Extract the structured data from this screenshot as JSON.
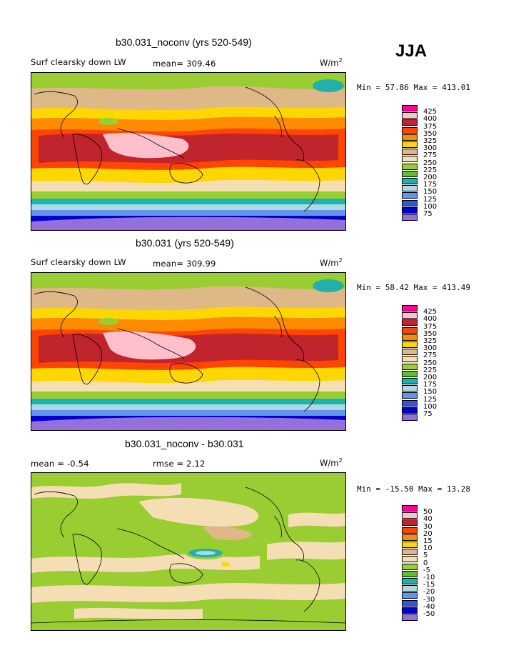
{
  "season": "JJA",
  "units_base": "W/m",
  "units_exp": "2",
  "panels": [
    {
      "title": "b30.031_noconv (yrs 520-549)",
      "left_label": "Surf clearsky down LW",
      "mid_label": "mean= 309.46",
      "minmax": "Min =  57.86 Max = 413.01",
      "colorbar": {
        "labels": [
          "425",
          "400",
          "375",
          "350",
          "325",
          "300",
          "275",
          "250",
          "225",
          "200",
          "175",
          "150",
          "125",
          "100",
          "75"
        ],
        "colors": [
          "#ff0099",
          "#ffc0cb",
          "#c0242c",
          "#ff4500",
          "#ff8c00",
          "#ffd700",
          "#deb887",
          "#f5deb3",
          "#9acd32",
          "#66bb33",
          "#20b2aa",
          "#add8e6",
          "#6495ed",
          "#3355dd",
          "#0000cd",
          "#9370db"
        ]
      }
    },
    {
      "title": "b30.031 (yrs 520-549)",
      "left_label": "Surf clearsky down LW",
      "mid_label": "mean= 309.99",
      "minmax": "Min =  58.42 Max = 413.49",
      "colorbar": {
        "labels": [
          "425",
          "400",
          "375",
          "350",
          "325",
          "300",
          "275",
          "250",
          "225",
          "200",
          "175",
          "150",
          "125",
          "100",
          "75"
        ],
        "colors": [
          "#ff0099",
          "#ffc0cb",
          "#c0242c",
          "#ff4500",
          "#ff8c00",
          "#ffd700",
          "#deb887",
          "#f5deb3",
          "#9acd32",
          "#66bb33",
          "#20b2aa",
          "#add8e6",
          "#6495ed",
          "#3355dd",
          "#0000cd",
          "#9370db"
        ]
      }
    },
    {
      "title": "b30.031_noconv - b30.031",
      "left_label": "mean =   -0.54",
      "mid_label": "rmse =    2.12",
      "minmax": "Min = -15.50 Max =  13.28",
      "colorbar": {
        "labels": [
          "50",
          "40",
          "30",
          "20",
          "15",
          "10",
          "5",
          "0",
          "-5",
          "-10",
          "-15",
          "-20",
          "-30",
          "-40",
          "-50"
        ],
        "colors": [
          "#ff0099",
          "#ffc0cb",
          "#c0242c",
          "#ff4500",
          "#ff8c00",
          "#ffd700",
          "#deb887",
          "#f5deb3",
          "#9acd32",
          "#66bb33",
          "#20b2aa",
          "#add8e6",
          "#6495ed",
          "#3355dd",
          "#0000cd",
          "#9370db"
        ]
      }
    }
  ],
  "chart_data": [
    {
      "type": "heatmap",
      "title": "b30.031_noconv (yrs 520-549)",
      "variable": "Surf clearsky down LW",
      "units": "W/m2",
      "mean": 309.46,
      "min": 57.86,
      "max": 413.01,
      "contour_levels": [
        75,
        100,
        125,
        150,
        175,
        200,
        225,
        250,
        275,
        300,
        325,
        350,
        375,
        400,
        425
      ],
      "field_bands": [
        {
          "lat_range": [
            60,
            90
          ],
          "level": 250
        },
        {
          "lat_range": [
            40,
            60
          ],
          "level": 275
        },
        {
          "lat_range": [
            25,
            40
          ],
          "level": 325
        },
        {
          "lat_range": [
            10,
            25
          ],
          "level": 375
        },
        {
          "lat_range": [
            -10,
            10
          ],
          "level": 400
        },
        {
          "lat_range": [
            -25,
            -10
          ],
          "level": 350
        },
        {
          "lat_range": [
            -40,
            -25
          ],
          "level": 300
        },
        {
          "lat_range": [
            -55,
            -40
          ],
          "level": 250
        },
        {
          "lat_range": [
            -65,
            -55
          ],
          "level": 200
        },
        {
          "lat_range": [
            -75,
            -65
          ],
          "level": 150
        },
        {
          "lat_range": [
            -90,
            -75
          ],
          "level": 75
        }
      ]
    },
    {
      "type": "heatmap",
      "title": "b30.031 (yrs 520-549)",
      "variable": "Surf clearsky down LW",
      "units": "W/m2",
      "mean": 309.99,
      "min": 58.42,
      "max": 413.49,
      "contour_levels": [
        75,
        100,
        125,
        150,
        175,
        200,
        225,
        250,
        275,
        300,
        325,
        350,
        375,
        400,
        425
      ],
      "field_bands": [
        {
          "lat_range": [
            60,
            90
          ],
          "level": 250
        },
        {
          "lat_range": [
            40,
            60
          ],
          "level": 275
        },
        {
          "lat_range": [
            25,
            40
          ],
          "level": 325
        },
        {
          "lat_range": [
            10,
            25
          ],
          "level": 375
        },
        {
          "lat_range": [
            -10,
            10
          ],
          "level": 400
        },
        {
          "lat_range": [
            -25,
            -10
          ],
          "level": 350
        },
        {
          "lat_range": [
            -40,
            -25
          ],
          "level": 300
        },
        {
          "lat_range": [
            -55,
            -40
          ],
          "level": 250
        },
        {
          "lat_range": [
            -65,
            -55
          ],
          "level": 200
        },
        {
          "lat_range": [
            -75,
            -65
          ],
          "level": 150
        },
        {
          "lat_range": [
            -90,
            -75
          ],
          "level": 75
        }
      ]
    },
    {
      "type": "heatmap",
      "title": "b30.031_noconv - b30.031",
      "variable": "difference",
      "units": "W/m2",
      "mean": -0.54,
      "rmse": 2.12,
      "min": -15.5,
      "max": 13.28,
      "contour_levels": [
        -50,
        -40,
        -30,
        -20,
        -15,
        -10,
        -5,
        0,
        5,
        10,
        15,
        20,
        30,
        40,
        50
      ]
    }
  ]
}
